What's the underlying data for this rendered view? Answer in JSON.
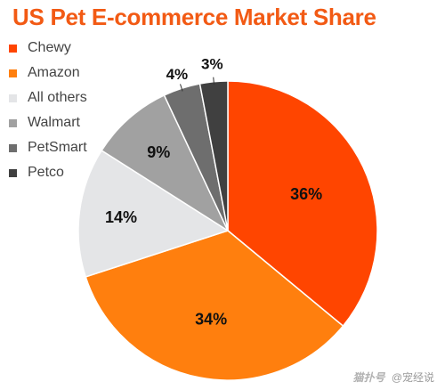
{
  "chart_data": {
    "type": "pie",
    "title": "US Pet E-commerce Market Share",
    "categories": [
      "Chewy",
      "Amazon",
      "All others",
      "Walmart",
      "PetSmart",
      "Petco"
    ],
    "values": [
      36,
      34,
      14,
      9,
      4,
      3
    ],
    "labels": [
      "36%",
      "34%",
      "14%",
      "9%",
      "4%",
      "3%"
    ],
    "colors": [
      "#ff4500",
      "#ff7f0e",
      "#e4e5e7",
      "#a1a1a1",
      "#6e6e6e",
      "#404040"
    ],
    "legend_position": "top-left",
    "start_angle": "12 o'clock",
    "direction": "clockwise"
  },
  "watermark": {
    "brand": "猫扑号",
    "author": "@宠经说"
  }
}
